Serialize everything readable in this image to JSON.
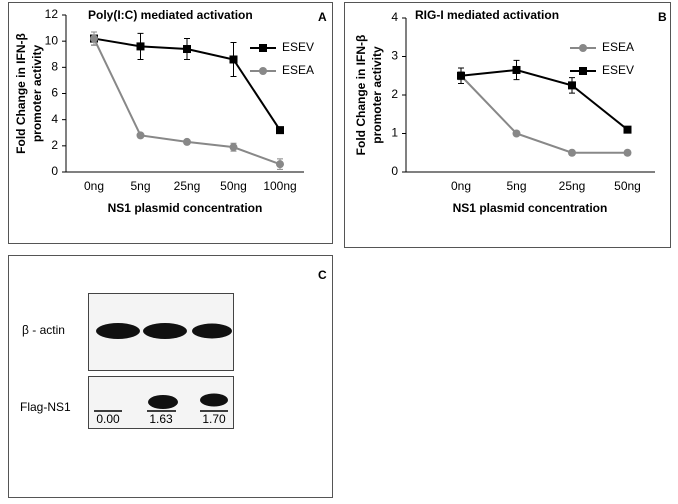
{
  "chart_data": [
    {
      "type": "line",
      "panel_label": "A",
      "title": "Poly(I:C) mediated activation",
      "ylabel": [
        "Fold Change in IFN-β",
        "promoter activity"
      ],
      "xlabel": "NS1 plasmid concentration",
      "categories": [
        "0ng",
        "5ng",
        "25ng",
        "50ng",
        "100ng"
      ],
      "ylim": [
        0,
        12
      ],
      "yticks": [
        0,
        2,
        4,
        6,
        8,
        10,
        12
      ],
      "legend": "upper right",
      "series": [
        {
          "name": "ESEV",
          "color": "#000000",
          "marker": "square",
          "values": [
            10.2,
            9.6,
            9.4,
            8.6,
            3.2
          ],
          "errors": [
            0.5,
            1.0,
            0.8,
            1.3,
            0.2
          ]
        },
        {
          "name": "ESEA",
          "color": "#888888",
          "marker": "circle",
          "values": [
            10.2,
            2.8,
            2.3,
            1.9,
            0.6
          ],
          "errors": [
            0.5,
            0.1,
            0.15,
            0.3,
            0.4
          ]
        }
      ]
    },
    {
      "type": "line",
      "panel_label": "B",
      "title": "RIG-I mediated activation",
      "ylabel": [
        "Fold Change in IFN-β",
        "promoter activity"
      ],
      "xlabel": "NS1 plasmid concentration",
      "categories": [
        "0ng",
        "5ng",
        "25ng",
        "50ng"
      ],
      "ylim": [
        0,
        4
      ],
      "yticks": [
        0,
        1,
        2,
        3,
        4
      ],
      "legend": "upper right",
      "series": [
        {
          "name": "ESEA",
          "color": "#888888",
          "marker": "circle",
          "values": [
            2.5,
            1.0,
            0.5,
            0.5
          ],
          "errors": [
            0.1,
            0.05,
            0.03,
            0.03
          ]
        },
        {
          "name": "ESEV",
          "color": "#000000",
          "marker": "square",
          "values": [
            2.5,
            2.65,
            2.25,
            1.1
          ],
          "errors": [
            0.2,
            0.25,
            0.2,
            0.05
          ]
        }
      ]
    }
  ],
  "panel_c": {
    "panel_label": "C",
    "rows": [
      "β - actin",
      "Flag-NS1"
    ],
    "quantification": [
      "0.00",
      "1.63",
      "1.70"
    ]
  }
}
